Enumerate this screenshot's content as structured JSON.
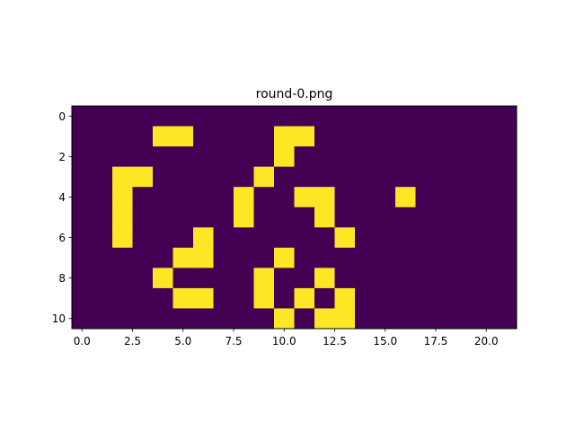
{
  "chart_data": {
    "type": "heatmap",
    "title": "round-0.png",
    "xlabel": "",
    "ylabel": "",
    "rows": 11,
    "cols": 22,
    "xlim": [
      -0.5,
      21.5
    ],
    "ylim": [
      10.5,
      -0.5
    ],
    "x_ticks": [
      0.0,
      2.5,
      5.0,
      7.5,
      10.0,
      12.5,
      15.0,
      17.5,
      20.0
    ],
    "x_tick_labels": [
      "0.0",
      "2.5",
      "5.0",
      "7.5",
      "10.0",
      "12.5",
      "15.0",
      "17.5",
      "20.0"
    ],
    "y_ticks": [
      0,
      2,
      4,
      6,
      8,
      10
    ],
    "y_tick_labels": [
      "0",
      "2",
      "4",
      "6",
      "8",
      "10"
    ],
    "grid": false,
    "colors": {
      "off": "#440154",
      "on": "#fde725"
    },
    "grid_values": [
      [
        0,
        0,
        0,
        0,
        0,
        0,
        0,
        0,
        0,
        0,
        0,
        0,
        0,
        0,
        0,
        0,
        0,
        0,
        0,
        0,
        0,
        0
      ],
      [
        0,
        0,
        0,
        0,
        1,
        1,
        0,
        0,
        0,
        0,
        1,
        1,
        0,
        0,
        0,
        0,
        0,
        0,
        0,
        0,
        0,
        0
      ],
      [
        0,
        0,
        0,
        0,
        0,
        0,
        0,
        0,
        0,
        0,
        1,
        0,
        0,
        0,
        0,
        0,
        0,
        0,
        0,
        0,
        0,
        0
      ],
      [
        0,
        0,
        1,
        1,
        0,
        0,
        0,
        0,
        0,
        1,
        0,
        0,
        0,
        0,
        0,
        0,
        0,
        0,
        0,
        0,
        0,
        0
      ],
      [
        0,
        0,
        1,
        0,
        0,
        0,
        0,
        0,
        1,
        0,
        0,
        1,
        1,
        0,
        0,
        0,
        1,
        0,
        0,
        0,
        0,
        0
      ],
      [
        0,
        0,
        1,
        0,
        0,
        0,
        0,
        0,
        1,
        0,
        0,
        0,
        1,
        0,
        0,
        0,
        0,
        0,
        0,
        0,
        0,
        0
      ],
      [
        0,
        0,
        1,
        0,
        0,
        0,
        1,
        0,
        0,
        0,
        0,
        0,
        0,
        1,
        0,
        0,
        0,
        0,
        0,
        0,
        0,
        0
      ],
      [
        0,
        0,
        0,
        0,
        0,
        1,
        1,
        0,
        0,
        0,
        1,
        0,
        0,
        0,
        0,
        0,
        0,
        0,
        0,
        0,
        0,
        0
      ],
      [
        0,
        0,
        0,
        0,
        1,
        0,
        0,
        0,
        0,
        1,
        0,
        0,
        1,
        0,
        0,
        0,
        0,
        0,
        0,
        0,
        0,
        0
      ],
      [
        0,
        0,
        0,
        0,
        0,
        1,
        1,
        0,
        0,
        1,
        0,
        1,
        0,
        1,
        0,
        0,
        0,
        0,
        0,
        0,
        0,
        0
      ],
      [
        0,
        0,
        0,
        0,
        0,
        0,
        0,
        0,
        0,
        0,
        1,
        0,
        1,
        1,
        0,
        0,
        0,
        0,
        0,
        0,
        0,
        0
      ]
    ]
  }
}
